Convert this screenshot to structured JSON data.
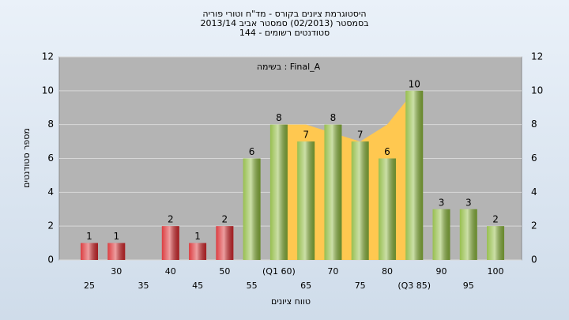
{
  "chart_data": {
    "type": "bar",
    "title_lines": [
      "היסטוגרמת ציונים בקורס - מד\"ח וטורי פוריה",
      "בסמסטר  (02/2013)  סמסטר אביב 2013/14",
      "סטודנטים רשומים - 144"
    ],
    "annotation": "בשימה : Final_A",
    "ylabel": "מספר סטודנטים",
    "xlabel": "טווח ציונים",
    "categories": [
      "25",
      "30",
      "35",
      "40",
      "45",
      "50",
      "55",
      "(Q1 60)",
      "65",
      "70",
      "75",
      "80",
      "(Q3 85)",
      "90",
      "95",
      "100"
    ],
    "values": [
      1,
      1,
      0,
      2,
      1,
      2,
      6,
      8,
      7,
      8,
      7,
      6,
      10,
      3,
      3,
      2
    ],
    "colors": [
      "#d8282c",
      "#d8282c",
      "#d8282c",
      "#d8282c",
      "#d8282c",
      "#d8282c",
      "#8cb83c",
      "#8cb83c",
      "#8cb83c",
      "#8cb83c",
      "#8cb83c",
      "#8cb83c",
      "#8cb83c",
      "#8cb83c",
      "#8cb83c",
      "#8cb83c"
    ],
    "band": {
      "color": "#ffc850",
      "values": [
        null,
        null,
        null,
        null,
        null,
        null,
        null,
        8,
        8,
        7.5,
        7,
        8,
        10,
        null,
        null,
        null
      ]
    },
    "ylim": [
      0,
      12
    ],
    "yticks": [
      0,
      2,
      4,
      6,
      8,
      10,
      12
    ],
    "grid": true,
    "right_axis": true
  }
}
